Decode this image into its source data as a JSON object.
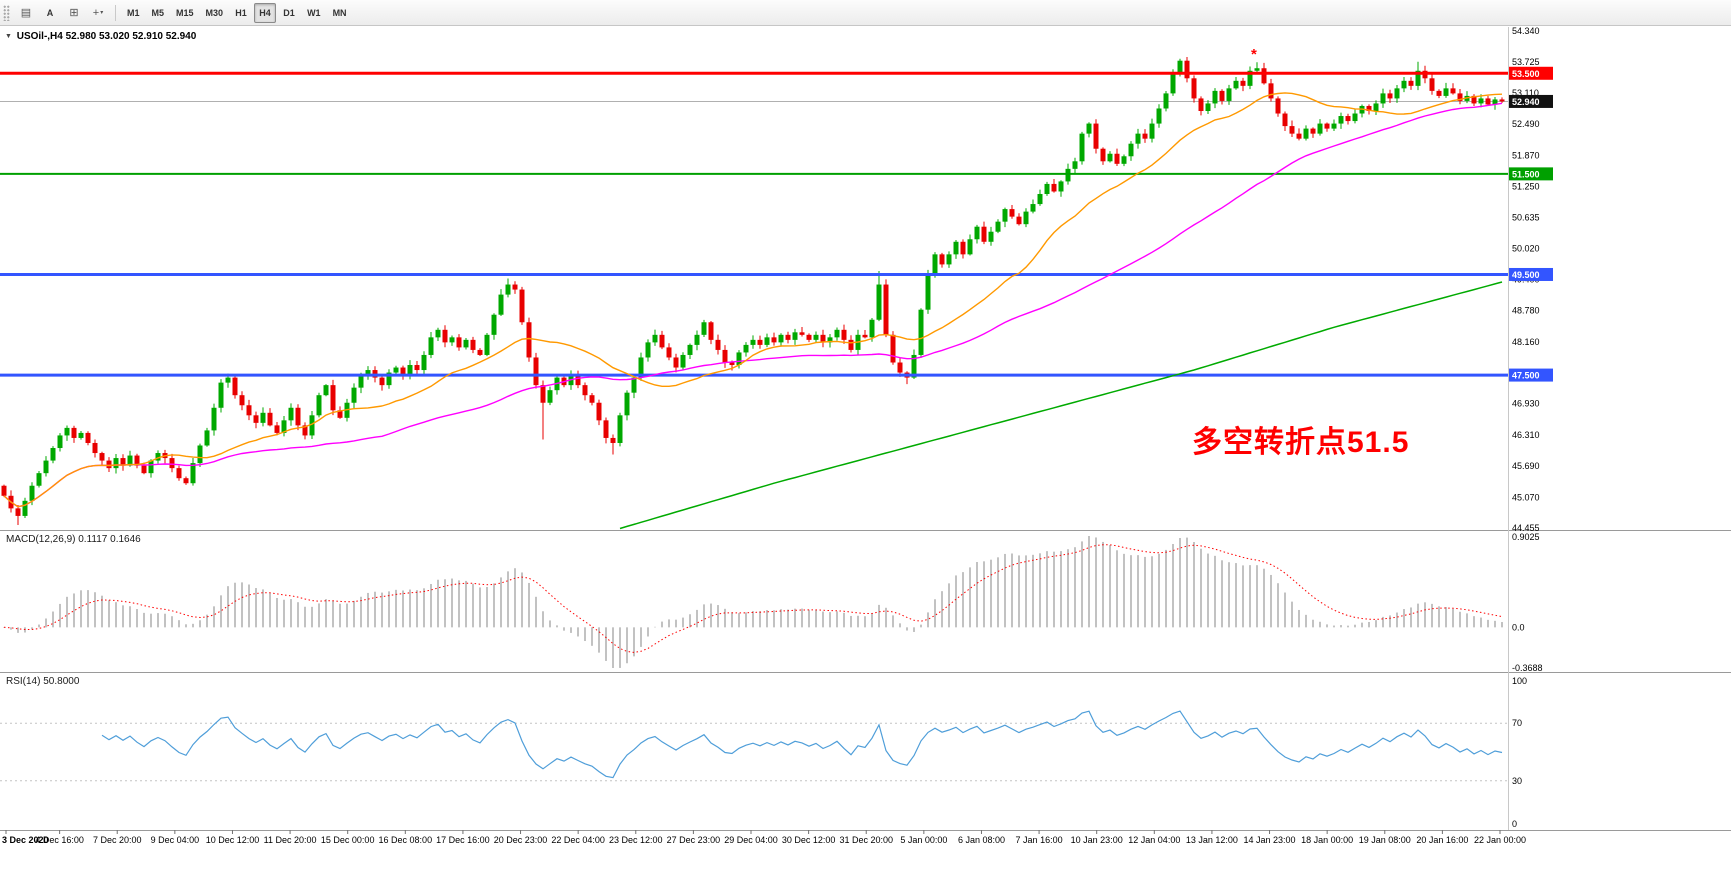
{
  "toolbar": {
    "icons": [
      {
        "name": "charts-grid-icon",
        "glyph": "▤"
      },
      {
        "name": "cursor-tool-icon",
        "glyph": "A"
      },
      {
        "name": "crosshair-tool-icon",
        "glyph": "⊞"
      },
      {
        "name": "indicators-dropdown-icon",
        "glyph": "+",
        "caret": "▾"
      }
    ],
    "timeframes": {
      "items": [
        "M1",
        "M5",
        "M15",
        "M30",
        "H1",
        "H4",
        "D1",
        "W1",
        "MN"
      ],
      "selected": "H4"
    }
  },
  "chart": {
    "collapse_arrow": "▼",
    "title": "USOil-,H4",
    "ohlc_text": "52.980 53.020 52.910 52.940",
    "annotation": {
      "text": "多空转折点51.5",
      "color": "#ff0000"
    },
    "marker": {
      "symbol": "*",
      "color": "#ff0000"
    }
  },
  "indicators": {
    "macd": {
      "label": "MACD(12,26,9)",
      "values_text": "0.1117 0.1646"
    },
    "rsi": {
      "label": "RSI(14)",
      "value_text": "50.8000"
    }
  },
  "chart_data": {
    "type": "candlestick",
    "symbol": "USOil-",
    "timeframe": "H4",
    "last_bar": {
      "open": 52.98,
      "high": 53.02,
      "low": 52.91,
      "close": 52.94
    },
    "price_range": {
      "min": 44.42,
      "max": 54.42
    },
    "y_axis_labels": [
      "54.340",
      "53.725",
      "53.110",
      "52.490",
      "51.870",
      "51.250",
      "50.635",
      "50.020",
      "49.400",
      "48.780",
      "48.160",
      "47.545",
      "46.930",
      "46.310",
      "45.690",
      "45.070",
      "44.455"
    ],
    "x_axis_labels": [
      "3 Dec 2020",
      "4 Dec 16:00",
      "7 Dec 20:00",
      "9 Dec 04:00",
      "10 Dec 12:00",
      "11 Dec 20:00",
      "15 Dec 00:00",
      "16 Dec 08:00",
      "17 Dec 16:00",
      "20 Dec 23:00",
      "22 Dec 04:00",
      "23 Dec 12:00",
      "27 Dec 23:00",
      "29 Dec 04:00",
      "30 Dec 12:00",
      "31 Dec 20:00",
      "5 Jan 00:00",
      "6 Jan 08:00",
      "7 Jan 16:00",
      "10 Jan 23:00",
      "12 Jan 04:00",
      "13 Jan 12:00",
      "14 Jan 23:00",
      "18 Jan 00:00",
      "19 Jan 08:00",
      "20 Jan 16:00",
      "22 Jan 00:00"
    ],
    "horizontal_levels": [
      {
        "price": 53.5,
        "label": "53.500",
        "color": "#ff0000",
        "width": 3
      },
      {
        "price": 51.5,
        "label": "51.500",
        "color": "#00a000",
        "width": 2
      },
      {
        "price": 49.5,
        "label": "49.500",
        "color": "#3355ff",
        "width": 3
      },
      {
        "price": 47.5,
        "label": "47.500",
        "color": "#3355ff",
        "width": 3
      }
    ],
    "current_price": {
      "value": 52.94,
      "label": "52.940"
    },
    "open_first": 45.3,
    "closes": [
      45.1,
      44.85,
      44.7,
      45.0,
      45.3,
      45.55,
      45.8,
      46.05,
      46.3,
      46.45,
      46.25,
      46.35,
      46.15,
      45.95,
      45.8,
      45.65,
      45.85,
      45.7,
      45.9,
      45.7,
      45.55,
      45.8,
      45.95,
      45.85,
      45.65,
      45.45,
      45.35,
      45.75,
      46.1,
      46.4,
      46.85,
      47.35,
      47.45,
      47.1,
      46.9,
      46.7,
      46.55,
      46.75,
      46.5,
      46.35,
      46.6,
      46.85,
      46.5,
      46.3,
      46.7,
      47.1,
      47.3,
      46.8,
      46.65,
      46.95,
      47.25,
      47.5,
      47.6,
      47.45,
      47.3,
      47.55,
      47.65,
      47.5,
      47.7,
      47.6,
      47.9,
      48.25,
      48.4,
      48.15,
      48.25,
      48.05,
      48.2,
      48.0,
      47.9,
      48.3,
      48.7,
      49.1,
      49.3,
      49.2,
      48.55,
      47.85,
      47.3,
      46.95,
      47.2,
      47.45,
      47.3,
      47.5,
      47.3,
      47.1,
      46.95,
      46.6,
      46.25,
      46.15,
      46.7,
      47.15,
      47.45,
      47.85,
      48.15,
      48.3,
      48.05,
      47.85,
      47.65,
      47.9,
      48.1,
      48.3,
      48.55,
      48.2,
      48.0,
      47.75,
      47.7,
      47.95,
      48.1,
      48.2,
      48.1,
      48.25,
      48.15,
      48.3,
      48.2,
      48.35,
      48.3,
      48.2,
      48.3,
      48.15,
      48.25,
      48.4,
      48.2,
      48.0,
      48.3,
      48.25,
      48.6,
      49.3,
      48.3,
      47.75,
      47.55,
      47.45,
      47.9,
      48.8,
      49.5,
      49.9,
      49.7,
      49.9,
      50.15,
      49.9,
      50.2,
      50.45,
      50.15,
      50.35,
      50.55,
      50.8,
      50.65,
      50.5,
      50.75,
      50.9,
      51.1,
      51.3,
      51.15,
      51.35,
      51.6,
      51.75,
      52.3,
      52.5,
      52.0,
      51.75,
      51.9,
      51.7,
      51.85,
      52.1,
      52.3,
      52.2,
      52.5,
      52.8,
      53.1,
      53.5,
      53.75,
      53.4,
      53.0,
      52.75,
      52.9,
      53.15,
      52.95,
      53.2,
      53.35,
      53.25,
      53.55,
      53.6,
      53.3,
      53.0,
      52.7,
      52.45,
      52.3,
      52.2,
      52.4,
      52.3,
      52.5,
      52.4,
      52.5,
      52.65,
      52.55,
      52.7,
      52.85,
      52.75,
      52.9,
      53.1,
      53.0,
      53.2,
      53.35,
      53.25,
      53.55,
      53.4,
      53.15,
      53.05,
      53.2,
      53.1,
      52.95,
      53.05,
      52.9,
      53.0,
      52.88,
      52.98,
      52.94
    ],
    "wick_overrides": {
      "2": [
        null,
        44.52
      ],
      "72": [
        49.42,
        null
      ],
      "77": [
        null,
        46.22
      ],
      "87": [
        null,
        45.92
      ],
      "125": [
        49.57,
        null
      ],
      "129": [
        null,
        47.32
      ],
      "168": [
        53.79,
        null
      ],
      "179": [
        53.72,
        null
      ],
      "202": [
        53.73,
        null
      ],
      "214": [
        53.02,
        52.91
      ]
    },
    "moving_averages": {
      "fast": {
        "period": 20,
        "color": "#ff9900"
      },
      "mid": {
        "period": 55,
        "color": "#ff00ff"
      },
      "slow": {
        "color": "#00aa00",
        "anchors": [
          [
            88,
            44.45
          ],
          [
            110,
            45.35
          ],
          [
            130,
            46.1
          ],
          [
            150,
            46.85
          ],
          [
            170,
            47.6
          ],
          [
            190,
            48.45
          ],
          [
            214,
            49.35
          ]
        ]
      }
    },
    "macd": {
      "fast": 12,
      "slow": 26,
      "signal": 9,
      "axis_labels": [
        "0.9025",
        "0.0",
        "-0.3688"
      ],
      "hist_color": "#c2c2c2",
      "signal_color": "#ff0000"
    },
    "rsi": {
      "period": 14,
      "levels": [
        70,
        30
      ],
      "axis_labels": [
        "100",
        "70",
        "30",
        "0"
      ],
      "color": "#4f9ed9"
    },
    "candle_colors": {
      "up": "#00a800",
      "down": "#e80000"
    }
  }
}
